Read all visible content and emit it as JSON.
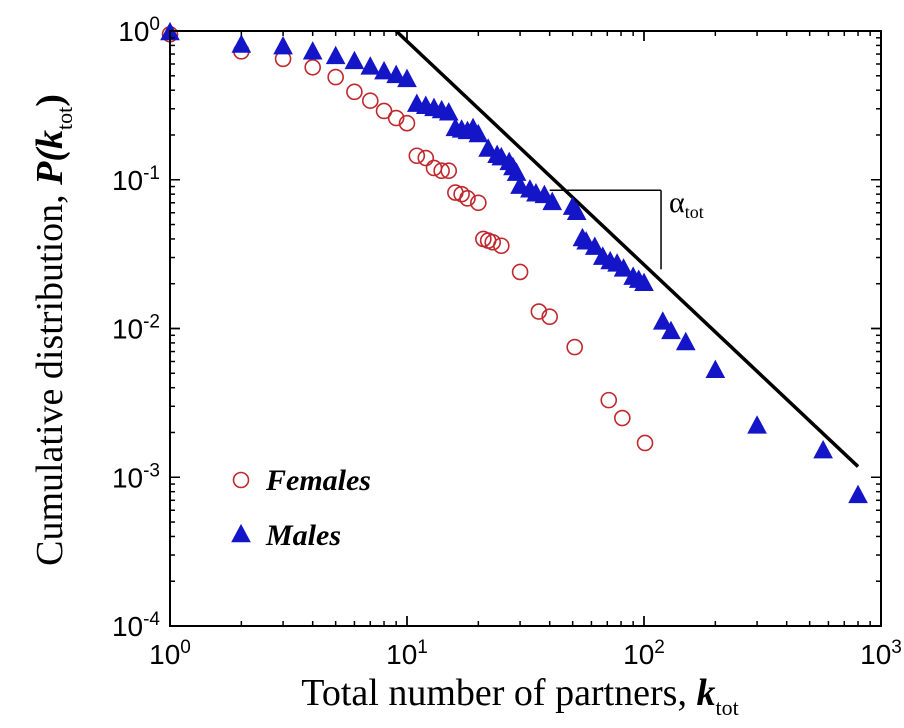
{
  "chart_data": {
    "type": "scatter",
    "title": "",
    "xlabel": {
      "main": "Total number of partners, ",
      "var": "k",
      "sub": "tot"
    },
    "ylabel": {
      "main": "Cumulative distribution, ",
      "var": "P(k",
      "sub": "tot",
      "close": ")"
    },
    "x_scale": "log",
    "y_scale": "log",
    "xlim": [
      1,
      1000
    ],
    "ylim": [
      0.0001,
      1
    ],
    "x_ticks": [
      {
        "base": "10",
        "exp": "0",
        "value": 1
      },
      {
        "base": "10",
        "exp": "1",
        "value": 10
      },
      {
        "base": "10",
        "exp": "2",
        "value": 100
      },
      {
        "base": "10",
        "exp": "3",
        "value": 1000
      }
    ],
    "y_ticks": [
      {
        "base": "10",
        "exp": "0",
        "value": 1
      },
      {
        "base": "10",
        "exp": "-1",
        "value": 0.1
      },
      {
        "base": "10",
        "exp": "-2",
        "value": 0.01
      },
      {
        "base": "10",
        "exp": "-3",
        "value": 0.001
      },
      {
        "base": "10",
        "exp": "-4",
        "value": 0.0001
      }
    ],
    "grid": false,
    "legend_position": "bottom-left",
    "series": [
      {
        "name": "Females",
        "marker": "open-circle",
        "color": "#c0282d",
        "points": [
          [
            1,
            0.95
          ],
          [
            2,
            0.73
          ],
          [
            3,
            0.65
          ],
          [
            4,
            0.57
          ],
          [
            5,
            0.49
          ],
          [
            6,
            0.39
          ],
          [
            7,
            0.34
          ],
          [
            8,
            0.29
          ],
          [
            9,
            0.26
          ],
          [
            10,
            0.24
          ],
          [
            11,
            0.145
          ],
          [
            12,
            0.14
          ],
          [
            13,
            0.12
          ],
          [
            14,
            0.115
          ],
          [
            15,
            0.115
          ],
          [
            16,
            0.082
          ],
          [
            17,
            0.08
          ],
          [
            18,
            0.075
          ],
          [
            20,
            0.07
          ],
          [
            21,
            0.04
          ],
          [
            22,
            0.039
          ],
          [
            23,
            0.038
          ],
          [
            25,
            0.036
          ],
          [
            30,
            0.024
          ],
          [
            36,
            0.013
          ],
          [
            40,
            0.012
          ],
          [
            51,
            0.0075
          ],
          [
            71,
            0.0033
          ],
          [
            81,
            0.0025
          ],
          [
            101,
            0.0017
          ]
        ]
      },
      {
        "name": "Males",
        "marker": "filled-triangle",
        "color": "#1515c8",
        "points": [
          [
            1,
            0.97
          ],
          [
            2,
            0.8
          ],
          [
            3,
            0.78
          ],
          [
            4,
            0.72
          ],
          [
            5,
            0.67
          ],
          [
            6,
            0.62
          ],
          [
            7,
            0.57
          ],
          [
            8,
            0.53
          ],
          [
            9,
            0.5
          ],
          [
            10,
            0.47
          ],
          [
            11,
            0.32
          ],
          [
            12,
            0.31
          ],
          [
            13,
            0.3
          ],
          [
            14,
            0.29
          ],
          [
            15,
            0.28
          ],
          [
            16,
            0.22
          ],
          [
            17,
            0.215
          ],
          [
            18,
            0.21
          ],
          [
            19,
            0.22
          ],
          [
            20,
            0.2
          ],
          [
            22,
            0.16
          ],
          [
            24,
            0.145
          ],
          [
            25,
            0.14
          ],
          [
            27,
            0.13
          ],
          [
            28,
            0.12
          ],
          [
            29,
            0.11
          ],
          [
            30,
            0.09
          ],
          [
            33,
            0.085
          ],
          [
            35,
            0.08
          ],
          [
            38,
            0.078
          ],
          [
            41,
            0.07
          ],
          [
            50,
            0.065
          ],
          [
            52,
            0.06
          ],
          [
            55,
            0.04
          ],
          [
            57,
            0.038
          ],
          [
            62,
            0.035
          ],
          [
            67,
            0.03
          ],
          [
            72,
            0.028
          ],
          [
            77,
            0.027
          ],
          [
            82,
            0.025
          ],
          [
            90,
            0.022
          ],
          [
            95,
            0.021
          ],
          [
            100,
            0.02
          ],
          [
            120,
            0.011
          ],
          [
            130,
            0.0095
          ],
          [
            150,
            0.008
          ],
          [
            200,
            0.0052
          ],
          [
            300,
            0.0022
          ],
          [
            570,
            0.0015
          ],
          [
            800,
            0.00075
          ]
        ]
      }
    ],
    "fit_line": {
      "from": [
        9,
        1.0
      ],
      "to": [
        800,
        0.00118
      ],
      "color": "#000000"
    },
    "slope_annotation": {
      "label": "α",
      "sub": "tot",
      "h_line": {
        "from": [
          40,
          0.085
        ],
        "to": [
          118,
          0.085
        ]
      },
      "v_line": {
        "from": [
          118,
          0.085
        ],
        "to": [
          118,
          0.025
        ]
      }
    }
  }
}
